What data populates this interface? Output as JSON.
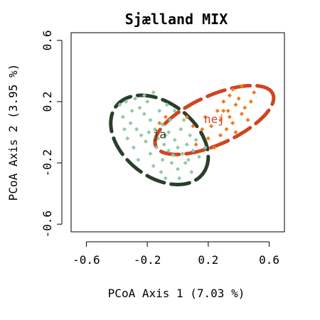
{
  "chart_data": {
    "type": "scatter",
    "title": "Sjælland MIX",
    "xlabel": "PCoA Axis 1 (7.03 %)",
    "ylabel": "PCoA Axis 2 (3.95 %)",
    "xlim": [
      -0.7,
      0.7
    ],
    "ylim": [
      -0.65,
      0.65
    ],
    "xticks": [
      -0.6,
      -0.2,
      0.2,
      0.6
    ],
    "yticks": [
      -0.6,
      -0.2,
      0.2,
      0.6
    ],
    "xtick_labels": [
      "-0.6",
      "-0.2",
      "0.2",
      "0.6"
    ],
    "ytick_labels": [
      "-0.6",
      "-0.2",
      "0.2",
      "0.6"
    ],
    "grid": false,
    "series": [
      {
        "name": "ja",
        "color": "#8fcaa2",
        "ellipse_color": "#2b3f2b",
        "label_pos": [
          -0.12,
          -0.04
        ],
        "ellipse": {
          "cx": -0.12,
          "cy": -0.05,
          "rx": 0.36,
          "ry": 0.24,
          "angle_deg": -38
        },
        "points": [
          [
            -0.38,
            0.18
          ],
          [
            -0.34,
            0.2
          ],
          [
            -0.3,
            0.14
          ],
          [
            -0.36,
            0.1
          ],
          [
            -0.28,
            0.22
          ],
          [
            -0.25,
            0.16
          ],
          [
            -0.31,
            0.06
          ],
          [
            -0.27,
            0.02
          ],
          [
            -0.22,
            0.12
          ],
          [
            -0.2,
            0.2
          ],
          [
            -0.18,
            0.08
          ],
          [
            -0.24,
            -0.02
          ],
          [
            -0.21,
            -0.06
          ],
          [
            -0.15,
            0.02
          ],
          [
            -0.12,
            0.14
          ],
          [
            -0.1,
            0.05
          ],
          [
            -0.14,
            -0.1
          ],
          [
            -0.18,
            -0.14
          ],
          [
            -0.08,
            -0.02
          ],
          [
            -0.05,
            0.08
          ],
          [
            -0.02,
            -0.05
          ],
          [
            -0.06,
            -0.12
          ],
          [
            -0.1,
            -0.18
          ],
          [
            0.0,
            -0.1
          ],
          [
            0.03,
            -0.14
          ],
          [
            0.06,
            -0.08
          ],
          [
            0.08,
            -0.02
          ],
          [
            0.02,
            0.02
          ],
          [
            0.05,
            -0.2
          ],
          [
            0.1,
            -0.12
          ],
          [
            0.12,
            -0.05
          ],
          [
            -0.16,
            -0.22
          ],
          [
            -0.11,
            -0.26
          ],
          [
            -0.04,
            -0.2
          ],
          [
            0.0,
            -0.24
          ],
          [
            0.07,
            -0.18
          ],
          [
            -0.29,
            -0.1
          ],
          [
            -0.33,
            -0.04
          ],
          [
            -0.26,
            -0.18
          ],
          [
            -0.22,
            0.24
          ],
          [
            -0.16,
            0.26
          ],
          [
            -0.07,
            0.18
          ],
          [
            -0.02,
            0.14
          ],
          [
            0.04,
            0.08
          ],
          [
            0.14,
            -0.16
          ],
          [
            0.18,
            -0.1
          ],
          [
            -0.13,
            -0.04
          ],
          [
            -0.09,
            -0.08
          ],
          [
            -0.03,
            -0.15
          ],
          [
            0.01,
            -0.3
          ],
          [
            -0.08,
            -0.3
          ],
          [
            0.09,
            -0.26
          ],
          [
            -0.35,
            0.02
          ],
          [
            -0.19,
            0.0
          ],
          [
            -0.06,
            0.0
          ]
        ]
      },
      {
        "name": "nej",
        "color": "#f07a1a",
        "ellipse_color": "#cf4520",
        "label_pos": [
          0.24,
          0.06
        ],
        "ellipse": {
          "cx": 0.24,
          "cy": 0.08,
          "rx": 0.42,
          "ry": 0.16,
          "angle_deg": 24
        },
        "points": [
          [
            0.3,
            0.14
          ],
          [
            0.34,
            0.1
          ],
          [
            0.38,
            0.18
          ],
          [
            0.36,
            0.06
          ],
          [
            0.42,
            0.12
          ],
          [
            0.32,
            0.02
          ],
          [
            0.28,
            0.08
          ],
          [
            0.4,
            0.22
          ],
          [
            0.44,
            0.16
          ],
          [
            0.46,
            0.08
          ],
          [
            0.34,
            0.24
          ],
          [
            0.3,
            0.2
          ],
          [
            0.26,
            0.14
          ],
          [
            0.38,
            0.0
          ],
          [
            0.48,
            0.2
          ],
          [
            0.22,
            0.04
          ],
          [
            0.2,
            -0.04
          ],
          [
            0.16,
            0.02
          ],
          [
            0.1,
            0.04
          ],
          [
            0.06,
            0.1
          ],
          [
            -0.08,
            0.1
          ],
          [
            -0.12,
            0.06
          ],
          [
            0.12,
            -0.08
          ],
          [
            0.24,
            -0.1
          ],
          [
            0.36,
            0.28
          ],
          [
            0.42,
            0.3
          ],
          [
            0.5,
            0.26
          ],
          [
            0.18,
            0.1
          ],
          [
            0.28,
            -0.02
          ],
          [
            0.33,
            0.14
          ]
        ]
      }
    ]
  }
}
